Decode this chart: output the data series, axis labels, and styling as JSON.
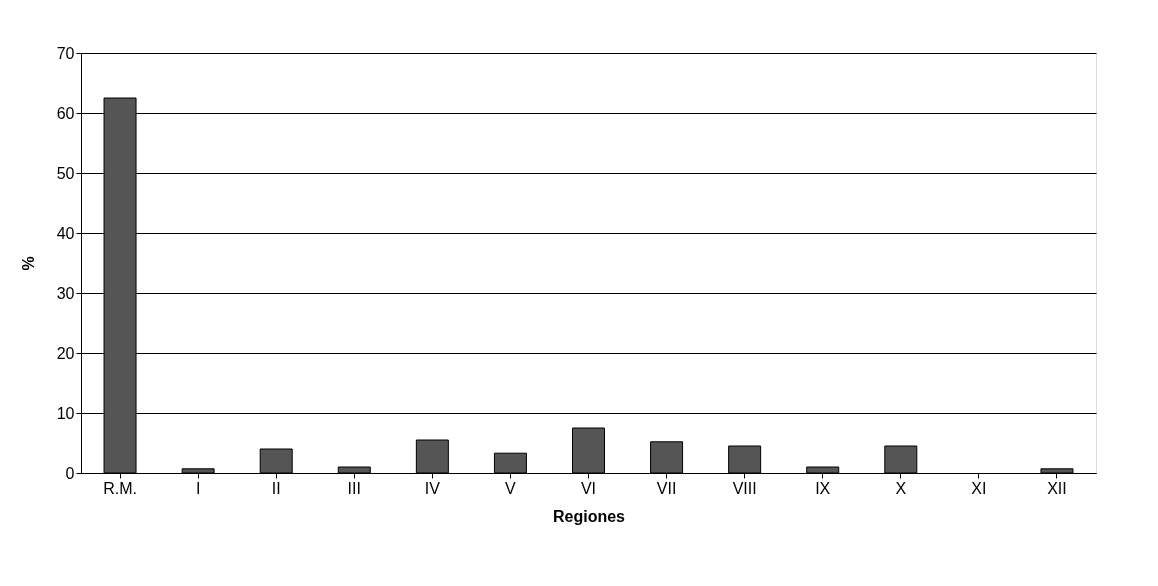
{
  "chart_data": {
    "type": "bar",
    "xlabel": "Regiones",
    "ylabel": "%",
    "categories": [
      "R.M.",
      "I",
      "II",
      "III",
      "IV",
      "V",
      "VI",
      "VII",
      "VIII",
      "IX",
      "X",
      "XI",
      "XII"
    ],
    "values": [
      62.5,
      0.7,
      4,
      1,
      5.5,
      3.3,
      7.5,
      5.2,
      4.5,
      1,
      4.5,
      null,
      0.7
    ],
    "color": "#555555",
    "ylim": [
      0,
      70
    ],
    "yticks": [
      0,
      10,
      20,
      30,
      40,
      50,
      60,
      70
    ],
    "grid": "y"
  }
}
